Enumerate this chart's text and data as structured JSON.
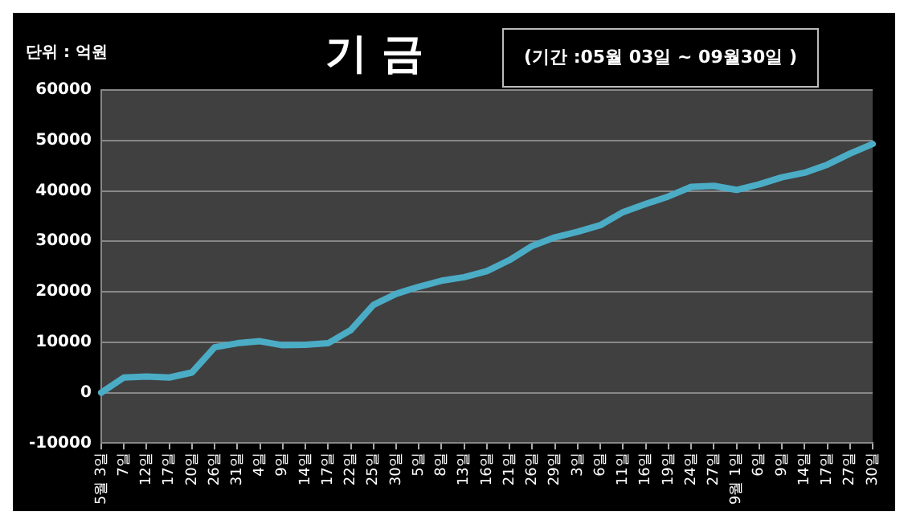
{
  "chart_data": {
    "type": "line",
    "title": "기 금",
    "annotations": [
      "단위 : 억원",
      "(기간 :05월 03일 ~ 09월30일 )"
    ],
    "categories": [
      "5월 3일",
      "7일",
      "12일",
      "17일",
      "20일",
      "26일",
      "31일",
      "4일",
      "9일",
      "14일",
      "17일",
      "22일",
      "25일",
      "30일",
      "5일",
      "8일",
      "13일",
      "16일",
      "21일",
      "26일",
      "29일",
      "3일",
      "6일",
      "11일",
      "16일",
      "19일",
      "24일",
      "27일",
      "9월 1일",
      "6일",
      "9일",
      "14일",
      "17일",
      "27일",
      "30일"
    ],
    "series": [
      {
        "color": "#4bacc6",
        "values": [
          0,
          3000,
          3200,
          3000,
          4000,
          9000,
          9800,
          10200,
          9400,
          9500,
          9800,
          12400,
          17400,
          19600,
          21000,
          22200,
          22900,
          24100,
          26300,
          29100,
          30800,
          31900,
          33200,
          35800,
          37400,
          38900,
          40800,
          41000,
          40200,
          41300,
          42700,
          43600,
          45200,
          47400,
          49300
        ]
      }
    ],
    "ylim": [
      -10000,
      60000
    ],
    "yticks": [
      -10000,
      0,
      10000,
      20000,
      30000,
      40000,
      50000,
      60000
    ],
    "grid": "y",
    "legend": false,
    "marker": "none",
    "line_style": "solid"
  }
}
